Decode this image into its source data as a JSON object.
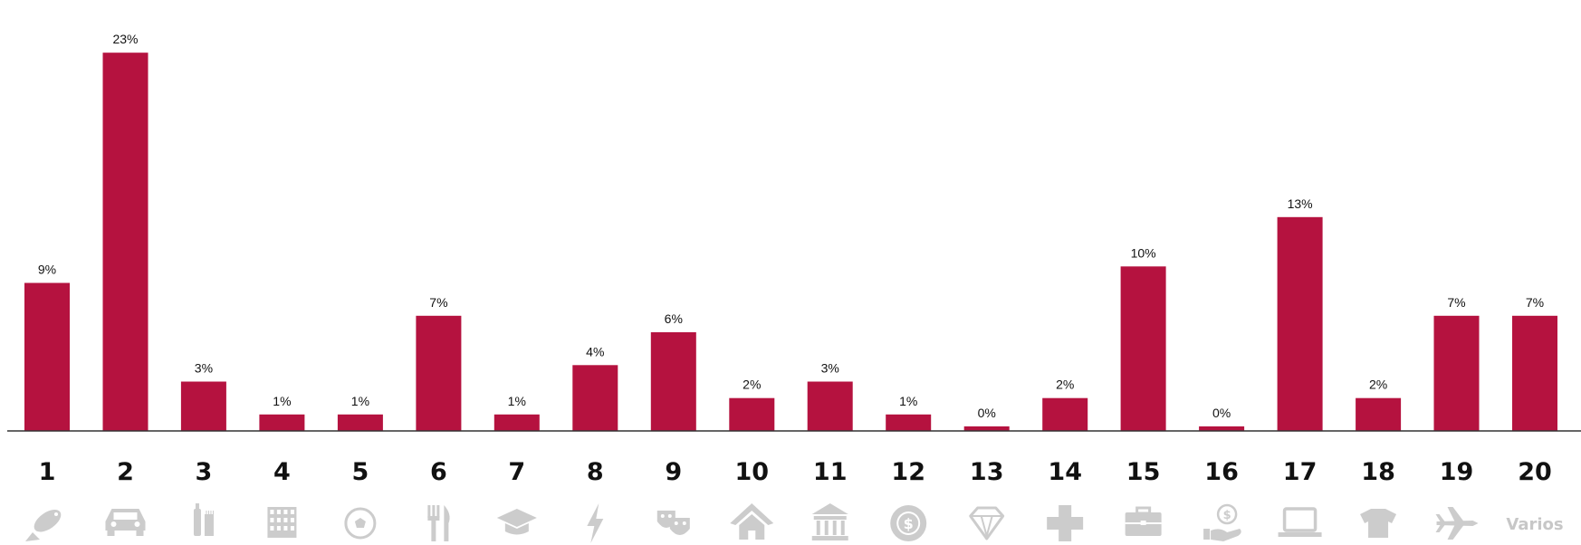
{
  "chart_data": {
    "type": "bar",
    "categories": [
      "1",
      "2",
      "3",
      "4",
      "5",
      "6",
      "7",
      "8",
      "9",
      "10",
      "11",
      "12",
      "13",
      "14",
      "15",
      "16",
      "17",
      "18",
      "19",
      "20"
    ],
    "values": [
      9,
      23,
      3,
      1,
      1,
      7,
      1,
      4,
      6,
      2,
      3,
      1,
      0,
      2,
      10,
      0,
      13,
      2,
      7,
      7
    ],
    "value_labels": [
      "9%",
      "23%",
      "3%",
      "1%",
      "1%",
      "7%",
      "1%",
      "4%",
      "6%",
      "2%",
      "3%",
      "1%",
      "0%",
      "2%",
      "10%",
      "0%",
      "13%",
      "2%",
      "7%",
      "7%"
    ],
    "title": "",
    "xlabel": "",
    "ylabel": "",
    "ylim": [
      0,
      24
    ],
    "grid": false,
    "legend": "none"
  },
  "icons": [
    {
      "name": "fish-icon"
    },
    {
      "name": "car-icon"
    },
    {
      "name": "toiletries-icon"
    },
    {
      "name": "building-icon"
    },
    {
      "name": "soccer-ball-icon"
    },
    {
      "name": "cutlery-icon"
    },
    {
      "name": "graduation-cap-icon"
    },
    {
      "name": "lightning-icon"
    },
    {
      "name": "theater-masks-icon"
    },
    {
      "name": "house-icon"
    },
    {
      "name": "bank-icon"
    },
    {
      "name": "coin-icon"
    },
    {
      "name": "diamond-icon"
    },
    {
      "name": "medical-cross-icon"
    },
    {
      "name": "briefcase-icon"
    },
    {
      "name": "hand-money-icon"
    },
    {
      "name": "laptop-icon"
    },
    {
      "name": "tshirt-icon"
    },
    {
      "name": "airplane-icon"
    },
    {
      "name": "varios-text-icon",
      "text": "Varios"
    }
  ],
  "colors": {
    "bar": "#b5123f",
    "axis": "#333333",
    "icon": "#cccccc",
    "text": "#111111"
  }
}
